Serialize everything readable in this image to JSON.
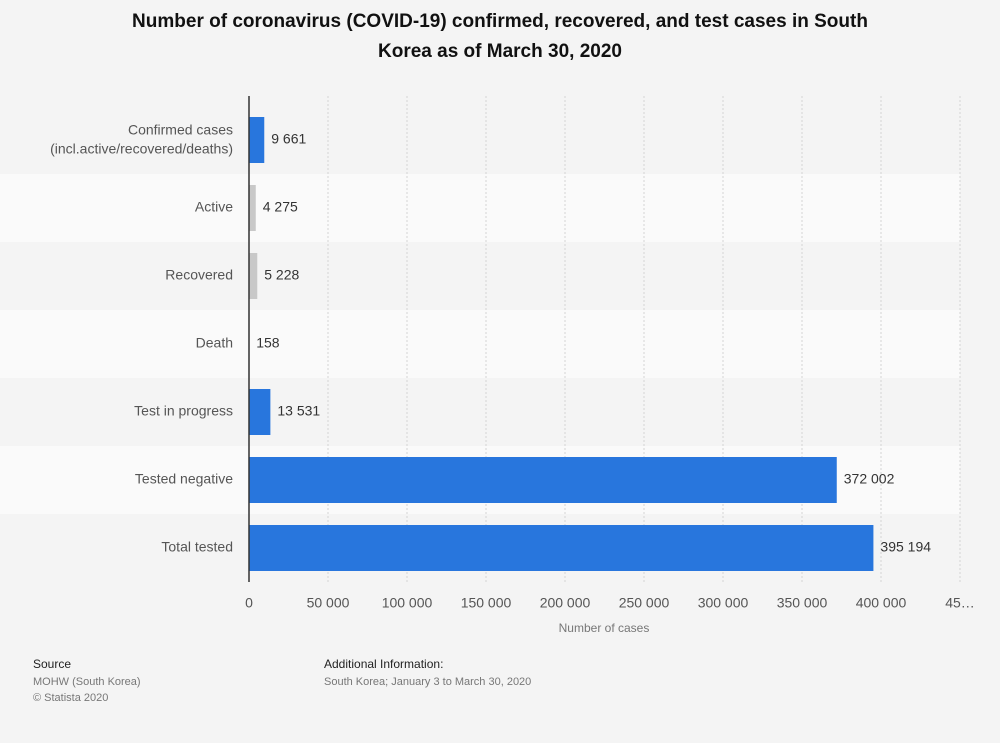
{
  "chart_data": {
    "type": "hbar",
    "title": "Number of coronavirus (COVID-19) confirmed, recovered, and test cases in South\nKorea as of March 30, 2020",
    "categories": [
      "Confirmed cases\n(incl.active/recovered/deaths)",
      "Active",
      "Recovered",
      "Death",
      "Test in progress",
      "Tested negative",
      "Total tested"
    ],
    "values": [
      9661,
      4275,
      5228,
      158,
      13531,
      372002,
      395194
    ],
    "value_labels": [
      "9 661",
      "4 275",
      "5 228",
      "158",
      "13 531",
      "372 002",
      "395 194"
    ],
    "colors": [
      "#2876dd",
      "#c8c8c8",
      "#c8c8c8",
      "#c8c8c8",
      "#2876dd",
      "#2876dd",
      "#2876dd"
    ],
    "xlim": [
      0,
      450000
    ],
    "xticks": [
      0,
      {
        "value": 50000,
        "label": "50 000"
      },
      {
        "value": 100000,
        "label": "100 000"
      },
      {
        "value": 150000,
        "label": "150 000"
      },
      {
        "value": 200000,
        "label": "200 000"
      },
      {
        "value": 250000,
        "label": "250 000"
      },
      {
        "value": 300000,
        "label": "300 000"
      },
      {
        "value": 350000,
        "label": "350 000"
      },
      {
        "value": 400000,
        "label": "400 000"
      },
      {
        "value": 450000,
        "label": "45…"
      }
    ],
    "xlabel": "Number of cases",
    "grid": true
  },
  "footer": {
    "source_heading": "Source",
    "source": "MOHW (South Korea)",
    "copyright": "© Statista 2020",
    "info_heading": "Additional Information:",
    "info": "South Korea; January 3 to March 30, 2020"
  }
}
